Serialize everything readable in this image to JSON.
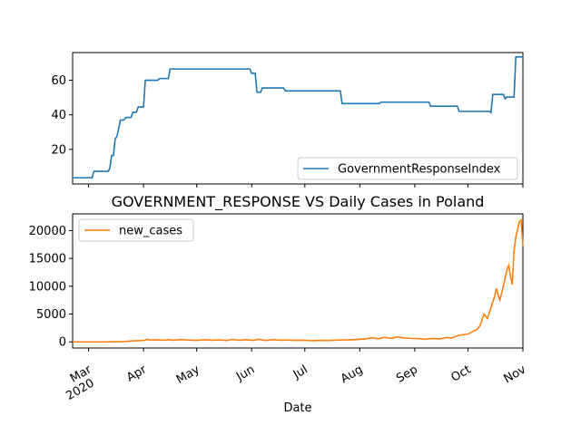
{
  "chart_data": [
    {
      "type": "line",
      "title": "",
      "xlabel": "",
      "ylabel": "",
      "x_range": [
        "2020-02-21",
        "2020-11-01"
      ],
      "ylim": [
        0,
        76
      ],
      "yticks": [
        20,
        40,
        60
      ],
      "legend_placement": "lower-right",
      "grid": false,
      "series": [
        {
          "name": "GovernmentResponseIndex",
          "color": "#1f77b4",
          "points": [
            [
              "2020-02-21",
              3.6
            ],
            [
              "2020-03-03",
              3.6
            ],
            [
              "2020-03-04",
              7.3
            ],
            [
              "2020-03-12",
              7.3
            ],
            [
              "2020-03-13",
              9.0
            ],
            [
              "2020-03-14",
              16.5
            ],
            [
              "2020-03-15",
              16.5
            ],
            [
              "2020-03-16",
              26.0
            ],
            [
              "2020-03-17",
              27.5
            ],
            [
              "2020-03-19",
              37.0
            ],
            [
              "2020-03-21",
              37.0
            ],
            [
              "2020-03-22",
              38.5
            ],
            [
              "2020-03-25",
              38.5
            ],
            [
              "2020-03-26",
              41.5
            ],
            [
              "2020-03-28",
              41.5
            ],
            [
              "2020-03-29",
              44.5
            ],
            [
              "2020-04-01",
              44.5
            ],
            [
              "2020-04-02",
              60.0
            ],
            [
              "2020-04-09",
              60.0
            ],
            [
              "2020-04-10",
              61.0
            ],
            [
              "2020-04-15",
              61.0
            ],
            [
              "2020-04-16",
              66.5
            ],
            [
              "2020-05-31",
              66.5
            ],
            [
              "2020-06-01",
              64.0
            ],
            [
              "2020-06-03",
              64.0
            ],
            [
              "2020-06-04",
              53.0
            ],
            [
              "2020-06-06",
              53.0
            ],
            [
              "2020-06-07",
              55.5
            ],
            [
              "2020-06-19",
              55.5
            ],
            [
              "2020-06-20",
              53.8
            ],
            [
              "2020-07-21",
              53.8
            ],
            [
              "2020-07-22",
              46.5
            ],
            [
              "2020-08-12",
              46.5
            ],
            [
              "2020-08-13",
              47.3
            ],
            [
              "2020-09-09",
              47.3
            ],
            [
              "2020-09-10",
              45.0
            ],
            [
              "2020-09-25",
              45.0
            ],
            [
              "2020-09-26",
              42.0
            ],
            [
              "2020-10-13",
              42.0
            ],
            [
              "2020-10-14",
              41.3
            ],
            [
              "2020-10-15",
              51.8
            ],
            [
              "2020-10-21",
              51.8
            ],
            [
              "2020-10-22",
              49.3
            ],
            [
              "2020-10-23",
              50.3
            ],
            [
              "2020-10-27",
              50.3
            ],
            [
              "2020-10-28",
              73.5
            ],
            [
              "2020-11-01",
              73.5
            ]
          ]
        }
      ]
    },
    {
      "type": "line",
      "title": "GOVERNMENT_RESPONSE VS Daily Cases in Poland",
      "xlabel": "Date",
      "ylabel": "",
      "x_range": [
        "2020-02-21",
        "2020-11-01"
      ],
      "ylim": [
        -1100,
        23000
      ],
      "yticks": [
        0,
        5000,
        10000,
        15000,
        20000
      ],
      "xticks": [
        {
          "date": "2020-03-01",
          "label": "Mar",
          "sublabel": "2020"
        },
        {
          "date": "2020-04-01",
          "label": "Apr",
          "sublabel": ""
        },
        {
          "date": "2020-05-01",
          "label": "May",
          "sublabel": ""
        },
        {
          "date": "2020-06-01",
          "label": "Jun",
          "sublabel": ""
        },
        {
          "date": "2020-07-01",
          "label": "Jul",
          "sublabel": ""
        },
        {
          "date": "2020-08-01",
          "label": "Aug",
          "sublabel": ""
        },
        {
          "date": "2020-09-01",
          "label": "Sep",
          "sublabel": ""
        },
        {
          "date": "2020-10-01",
          "label": "Oct",
          "sublabel": ""
        },
        {
          "date": "2020-11-01",
          "label": "Nov",
          "sublabel": ""
        }
      ],
      "legend_placement": "upper-left",
      "grid": false,
      "series": [
        {
          "name": "new_cases",
          "color": "#ff7f0e",
          "points": [
            [
              "2020-02-21",
              0
            ],
            [
              "2020-03-10",
              0
            ],
            [
              "2020-03-20",
              40
            ],
            [
              "2020-03-27",
              200
            ],
            [
              "2020-04-01",
              250
            ],
            [
              "2020-04-03",
              450
            ],
            [
              "2020-04-05",
              330
            ],
            [
              "2020-04-08",
              380
            ],
            [
              "2020-04-12",
              300
            ],
            [
              "2020-04-15",
              400
            ],
            [
              "2020-04-18",
              290
            ],
            [
              "2020-04-22",
              420
            ],
            [
              "2020-04-26",
              330
            ],
            [
              "2020-05-01",
              280
            ],
            [
              "2020-05-05",
              380
            ],
            [
              "2020-05-10",
              300
            ],
            [
              "2020-05-14",
              360
            ],
            [
              "2020-05-18",
              260
            ],
            [
              "2020-05-21",
              430
            ],
            [
              "2020-05-25",
              300
            ],
            [
              "2020-05-29",
              380
            ],
            [
              "2020-06-02",
              280
            ],
            [
              "2020-06-05",
              450
            ],
            [
              "2020-06-09",
              250
            ],
            [
              "2020-06-13",
              400
            ],
            [
              "2020-06-17",
              300
            ],
            [
              "2020-06-21",
              330
            ],
            [
              "2020-06-25",
              270
            ],
            [
              "2020-07-01",
              290
            ],
            [
              "2020-07-05",
              220
            ],
            [
              "2020-07-10",
              280
            ],
            [
              "2020-07-15",
              250
            ],
            [
              "2020-07-20",
              330
            ],
            [
              "2020-07-25",
              350
            ],
            [
              "2020-07-30",
              420
            ],
            [
              "2020-08-04",
              520
            ],
            [
              "2020-08-08",
              740
            ],
            [
              "2020-08-11",
              560
            ],
            [
              "2020-08-15",
              810
            ],
            [
              "2020-08-19",
              620
            ],
            [
              "2020-08-22",
              900
            ],
            [
              "2020-08-26",
              700
            ],
            [
              "2020-08-30",
              630
            ],
            [
              "2020-09-03",
              600
            ],
            [
              "2020-09-07",
              480
            ],
            [
              "2020-09-11",
              620
            ],
            [
              "2020-09-15",
              520
            ],
            [
              "2020-09-19",
              800
            ],
            [
              "2020-09-22",
              700
            ],
            [
              "2020-09-25",
              1100
            ],
            [
              "2020-09-28",
              1300
            ],
            [
              "2020-10-01",
              1400
            ],
            [
              "2020-10-04",
              1900
            ],
            [
              "2020-10-06",
              2200
            ],
            [
              "2020-10-08",
              3000
            ],
            [
              "2020-10-10",
              5000
            ],
            [
              "2020-10-12",
              4200
            ],
            [
              "2020-10-14",
              6200
            ],
            [
              "2020-10-16",
              8100
            ],
            [
              "2020-10-17",
              9600
            ],
            [
              "2020-10-18",
              8500
            ],
            [
              "2020-10-19",
              7500
            ],
            [
              "2020-10-21",
              10000
            ],
            [
              "2020-10-23",
              13000
            ],
            [
              "2020-10-24",
              13700
            ],
            [
              "2020-10-25",
              11800
            ],
            [
              "2020-10-26",
              10300
            ],
            [
              "2020-10-27",
              16300
            ],
            [
              "2020-10-28",
              18800
            ],
            [
              "2020-10-30",
              21600
            ],
            [
              "2020-10-31",
              21900
            ],
            [
              "2020-11-01",
              17200
            ]
          ]
        }
      ]
    }
  ]
}
